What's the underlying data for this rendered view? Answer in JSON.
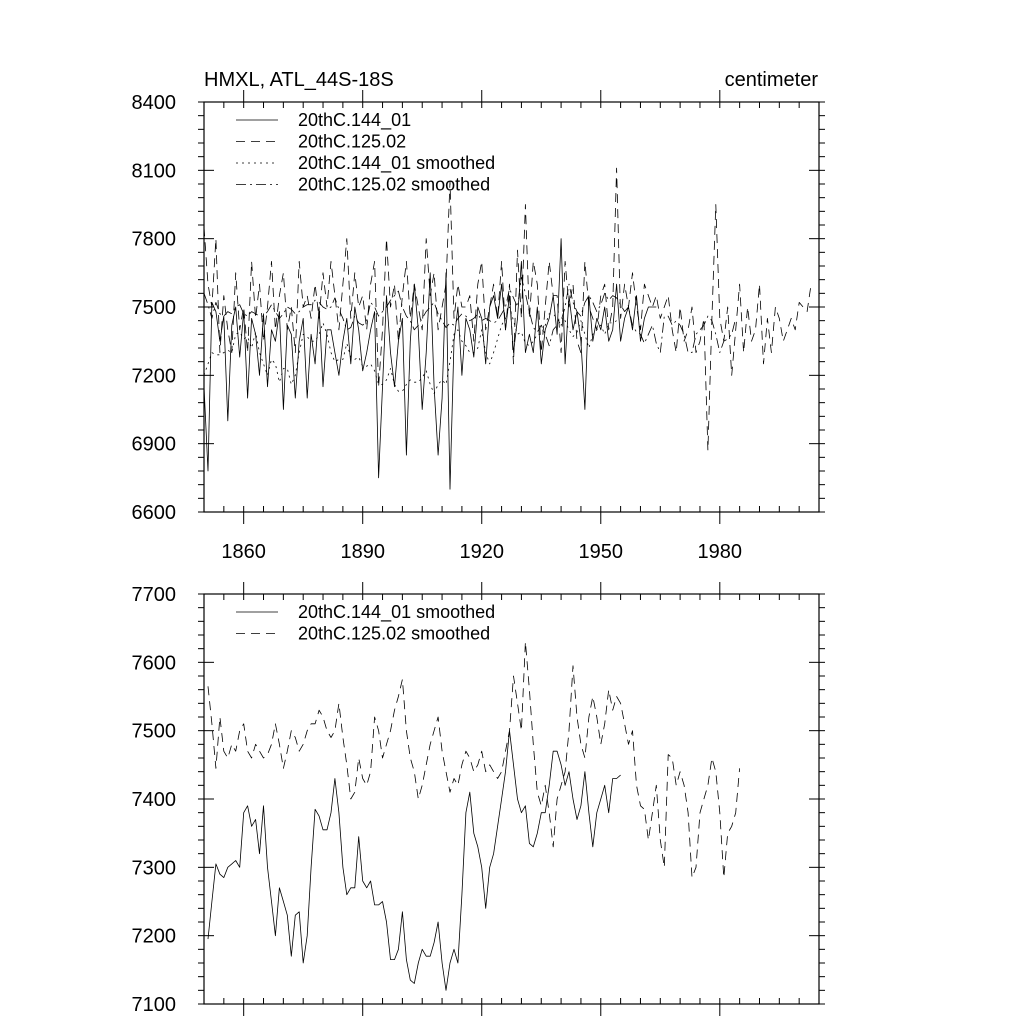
{
  "chart_data": [
    {
      "type": "line",
      "title": "HMXL, ATL_44S-18S",
      "units": "centimeter",
      "xlabel": "",
      "ylabel": "",
      "xlim": [
        1850,
        2005
      ],
      "ylim": [
        6600,
        8400
      ],
      "x_ticks": [
        1860,
        1890,
        1920,
        1950,
        1980
      ],
      "y_ticks": [
        6600,
        6900,
        7200,
        7500,
        7800,
        8100,
        8400
      ],
      "legend_position": "top-left",
      "series": [
        {
          "name": "20thC.144_01",
          "style": "solid",
          "x_start": 1850,
          "values": [
            7150,
            6780,
            7520,
            7480,
            7350,
            7460,
            7000,
            7420,
            7500,
            7280,
            7480,
            7100,
            7450,
            7380,
            7200,
            7470,
            7150,
            7400,
            7350,
            7480,
            7050,
            7420,
            7380,
            7100,
            7350,
            7450,
            7100,
            7380,
            7250,
            7500,
            7150,
            7400,
            7400,
            7300,
            7200,
            7350,
            7450,
            7250,
            7500,
            7400,
            7220,
            7300,
            7400,
            7480,
            6750,
            7150,
            7550,
            7300,
            7150,
            7350,
            7450,
            6850,
            7350,
            7600,
            7400,
            7050,
            7300,
            7650,
            7150,
            6850,
            7100,
            7650,
            6700,
            7350,
            7500,
            7200,
            7450,
            7400,
            7280,
            7500,
            7450,
            7250,
            7500,
            7550,
            7450,
            7600,
            7400,
            7550,
            7300,
            7450,
            7700,
            7300,
            7380,
            7300,
            7500,
            7250,
            7400,
            7450,
            7550,
            7380,
            7800,
            7250,
            7550,
            7400,
            7480,
            7350,
            7050,
            7550,
            7350,
            7450,
            7400,
            7500,
            7350,
            7400,
            7600,
            7350,
            7450,
            7500,
            7400,
            7550,
            7350,
            7450,
            7500,
            7500,
            7500
          ]
        },
        {
          "name": "20thC.125.02",
          "style": "dashed",
          "x_start": 1850,
          "values": [
            7850,
            7600,
            7500,
            7800,
            7300,
            7550,
            7400,
            7300,
            7650,
            7400,
            7500,
            7300,
            7700,
            7450,
            7600,
            7350,
            7500,
            7700,
            7400,
            7550,
            7650,
            7400,
            7500,
            7300,
            7700,
            7500,
            7550,
            7450,
            7600,
            7450,
            7650,
            7500,
            7700,
            7550,
            7400,
            7600,
            7800,
            7450,
            7650,
            7500,
            7550,
            7400,
            7600,
            7700,
            7150,
            7400,
            7800,
            7500,
            7600,
            7350,
            7550,
            7700,
            7450,
            7600,
            7500,
            7400,
            7800,
            7550,
            7650,
            7400,
            7500,
            7600,
            8050,
            7450,
            7600,
            7500,
            7500,
            7550,
            7350,
            7600,
            7700,
            7400,
            7500,
            7600,
            7450,
            7700,
            7400,
            7600,
            7250,
            7750,
            7450,
            7950,
            7450,
            7700,
            7600,
            7300,
            7500,
            7700,
            7550,
            7550,
            7300,
            7700,
            7500,
            7600,
            7350,
            7300,
            7700,
            7500,
            7450,
            7400,
            7550,
            7600,
            7400,
            7500,
            8110,
            7450,
            7600,
            7500,
            7650,
            7500,
            7400,
            7600,
            7550,
            7500,
            7550,
            7450,
            7500,
            7550,
            7400,
            7300,
            7500,
            7350,
            7400,
            7500,
            7300,
            7350,
            7450,
            6870,
            7450,
            7950,
            7450,
            7350,
            7500,
            7200,
            7400,
            7600,
            7300,
            7500,
            7350,
            7400,
            7600,
            7250,
            7450,
            7300,
            7500,
            7450,
            7350,
            7400,
            7450,
            7400,
            7520,
            7500,
            7480,
            7600
          ]
        },
        {
          "name": "20thC.144_01 smoothed",
          "style": "dotted",
          "x_start": 1850,
          "values": [
            7200,
            7250,
            7300,
            7290,
            7290,
            7300,
            7310,
            7300,
            7380,
            7390,
            7360,
            7370,
            7320,
            7390,
            7300,
            7250,
            7200,
            7270,
            7250,
            7170,
            7230,
            7230,
            7160,
            7200,
            7300,
            7380,
            7370,
            7350,
            7350,
            7380,
            7430,
            7380,
            7300,
            7260,
            7270,
            7270,
            7340,
            7280,
            7270,
            7280,
            7240,
            7240,
            7250,
            7220,
            7160,
            7160,
            7180,
            7230,
            7160,
            7130,
            7130,
            7160,
            7180,
            7170,
            7170,
            7190,
            7220,
            7160,
            7120,
            7160,
            7180,
            7160,
            7260,
            7380,
            7400,
            7350,
            7330,
            7300,
            7300,
            7320,
            7400,
            7300,
            7250,
            7300,
            7360,
            7420,
            7450,
            7500,
            7440,
            7380,
            7390,
            7340,
            7330,
            7350,
            7380,
            7380,
            7420,
            7470,
            7470,
            7450,
            7420,
            7440,
            7400,
            7370,
            7390,
            7440,
            7380,
            7320,
            7380,
            7400,
            7420,
            7380,
            7430,
            7430,
            7440
          ]
        },
        {
          "name": "20thC.125.02 smoothed",
          "style": "dashdot",
          "x_start": 1850,
          "values": [
            7560,
            7510,
            7450,
            7520,
            7470,
            7460,
            7480,
            7470,
            7500,
            7510,
            7470,
            7460,
            7480,
            7470,
            7460,
            7460,
            7480,
            7510,
            7480,
            7450,
            7470,
            7500,
            7490,
            7470,
            7480,
            7500,
            7510,
            7510,
            7530,
            7520,
            7500,
            7490,
            7500,
            7540,
            7490,
            7450,
            7400,
            7410,
            7460,
            7430,
            7420,
            7440,
            7520,
            7500,
            7460,
            7480,
            7500,
            7530,
            7550,
            7570,
            7500,
            7460,
            7440,
            7400,
            7420,
            7450,
            7480,
            7500,
            7520,
            7470,
            7440,
            7410,
            7430,
            7420,
            7450,
            7470,
            7460,
            7440,
            7450,
            7470,
            7440,
            7450,
            7440,
            7430,
            7440,
            7470,
            7500,
            7580,
            7540,
            7500,
            7630,
            7560,
            7480,
            7410,
            7390,
            7420,
            7380,
            7330,
            7400,
            7420,
            7440,
            7500,
            7600,
            7520,
            7480,
            7460,
            7520,
            7550,
            7520,
            7480,
            7510,
            7560,
            7530,
            7550,
            7540,
            7510,
            7480,
            7500,
            7420,
            7390,
            7380,
            7340,
            7380,
            7420,
            7340,
            7300,
            7460,
            7460,
            7420,
            7440,
            7420,
            7380,
            7300,
            7300,
            7380,
            7400,
            7420,
            7460,
            7440,
            7380,
            7300,
            7350,
            7360,
            7380,
            7450
          ]
        }
      ]
    },
    {
      "type": "line",
      "title": "",
      "xlabel": "",
      "ylabel": "",
      "xlim": [
        1850,
        2005
      ],
      "ylim": [
        7100,
        7700
      ],
      "x_ticks": [
        1860,
        1890,
        1920,
        1950,
        1980
      ],
      "y_ticks": [
        7100,
        7200,
        7300,
        7400,
        7500,
        7600,
        7700
      ],
      "legend_position": "top-left",
      "series": [
        {
          "name": "20thC.144_01 smoothed",
          "style": "solid",
          "x_start": 1851,
          "values": [
            7195,
            7250,
            7305,
            7290,
            7285,
            7300,
            7305,
            7310,
            7300,
            7380,
            7390,
            7360,
            7370,
            7320,
            7390,
            7300,
            7250,
            7200,
            7270,
            7250,
            7230,
            7170,
            7230,
            7235,
            7160,
            7200,
            7300,
            7385,
            7375,
            7355,
            7355,
            7380,
            7430,
            7380,
            7300,
            7260,
            7270,
            7270,
            7345,
            7280,
            7270,
            7280,
            7245,
            7245,
            7250,
            7220,
            7165,
            7165,
            7180,
            7235,
            7165,
            7135,
            7130,
            7160,
            7180,
            7170,
            7170,
            7190,
            7220,
            7160,
            7120,
            7160,
            7180,
            7160,
            7260,
            7380,
            7410,
            7350,
            7330,
            7300,
            7240,
            7300,
            7320,
            7360,
            7400,
            7440,
            7500,
            7450,
            7400,
            7380,
            7390,
            7335,
            7330,
            7350,
            7380,
            7380,
            7420,
            7470,
            7470,
            7450,
            7420,
            7440,
            7400,
            7370,
            7390,
            7440,
            7380,
            7330,
            7380,
            7400,
            7420,
            7380,
            7430,
            7430,
            7435
          ]
        },
        {
          "name": "20thC.125.02 smoothed",
          "style": "dashed",
          "x_start": 1851,
          "values": [
            7565,
            7510,
            7445,
            7520,
            7470,
            7460,
            7480,
            7470,
            7500,
            7510,
            7470,
            7460,
            7480,
            7470,
            7460,
            7465,
            7480,
            7510,
            7480,
            7445,
            7470,
            7500,
            7490,
            7470,
            7480,
            7500,
            7510,
            7510,
            7530,
            7520,
            7500,
            7490,
            7500,
            7540,
            7490,
            7450,
            7400,
            7410,
            7460,
            7430,
            7420,
            7440,
            7520,
            7500,
            7460,
            7480,
            7500,
            7530,
            7550,
            7575,
            7500,
            7460,
            7440,
            7400,
            7420,
            7450,
            7480,
            7500,
            7520,
            7470,
            7440,
            7410,
            7430,
            7420,
            7450,
            7470,
            7460,
            7440,
            7450,
            7470,
            7440,
            7450,
            7440,
            7430,
            7440,
            7470,
            7500,
            7580,
            7540,
            7500,
            7630,
            7560,
            7480,
            7410,
            7390,
            7420,
            7380,
            7330,
            7400,
            7420,
            7440,
            7500,
            7595,
            7520,
            7480,
            7460,
            7520,
            7550,
            7520,
            7480,
            7510,
            7560,
            7530,
            7550,
            7540,
            7510,
            7480,
            7500,
            7420,
            7390,
            7385,
            7340,
            7380,
            7420,
            7340,
            7300,
            7465,
            7460,
            7420,
            7440,
            7420,
            7380,
            7285,
            7300,
            7380,
            7400,
            7420,
            7460,
            7440,
            7380,
            7285,
            7350,
            7360,
            7380,
            7445
          ]
        }
      ]
    }
  ]
}
